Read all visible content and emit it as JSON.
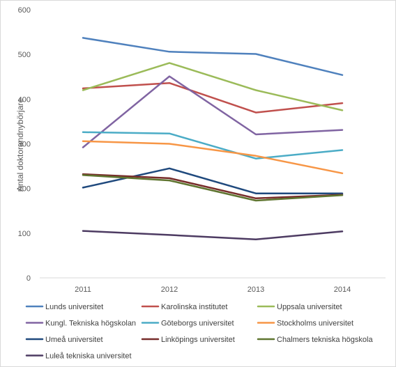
{
  "chart_data": {
    "type": "line",
    "title": "",
    "xlabel": "",
    "ylabel": "Antal doktorandnybörjare",
    "x": [
      "2011",
      "2012",
      "2013",
      "2014"
    ],
    "ylim": [
      0,
      600
    ],
    "yticks": [
      0,
      100,
      200,
      300,
      400,
      500,
      600
    ],
    "grid": false,
    "legend": "bottom",
    "series": [
      {
        "name": "Lunds universitet",
        "color": "#4f81bd",
        "values": [
          537,
          506,
          501,
          454
        ]
      },
      {
        "name": "Karolinska institutet",
        "color": "#c0504d",
        "values": [
          424,
          436,
          370,
          391
        ]
      },
      {
        "name": "Uppsala universitet",
        "color": "#9bbb59",
        "values": [
          420,
          481,
          420,
          375
        ]
      },
      {
        "name": "Kungl. Tekniska högskolan",
        "color": "#8064a2",
        "values": [
          292,
          451,
          321,
          331
        ]
      },
      {
        "name": "Göteborgs universitet",
        "color": "#4bacc6",
        "values": [
          326,
          323,
          267,
          286
        ]
      },
      {
        "name": "Stockholms universitet",
        "color": "#f79646",
        "values": [
          306,
          300,
          273,
          234
        ]
      },
      {
        "name": "Umeå universitet",
        "color": "#1f497d",
        "values": [
          202,
          245,
          189,
          189
        ]
      },
      {
        "name": "Linköpings universitet",
        "color": "#772c2a",
        "values": [
          232,
          223,
          178,
          186
        ]
      },
      {
        "name": "Chalmers tekniska högskola",
        "color": "#5f7530",
        "values": [
          230,
          218,
          173,
          185
        ]
      },
      {
        "name": "Luleå tekniska universitet",
        "color": "#4d3b62",
        "values": [
          105,
          96,
          86,
          104
        ]
      }
    ]
  }
}
